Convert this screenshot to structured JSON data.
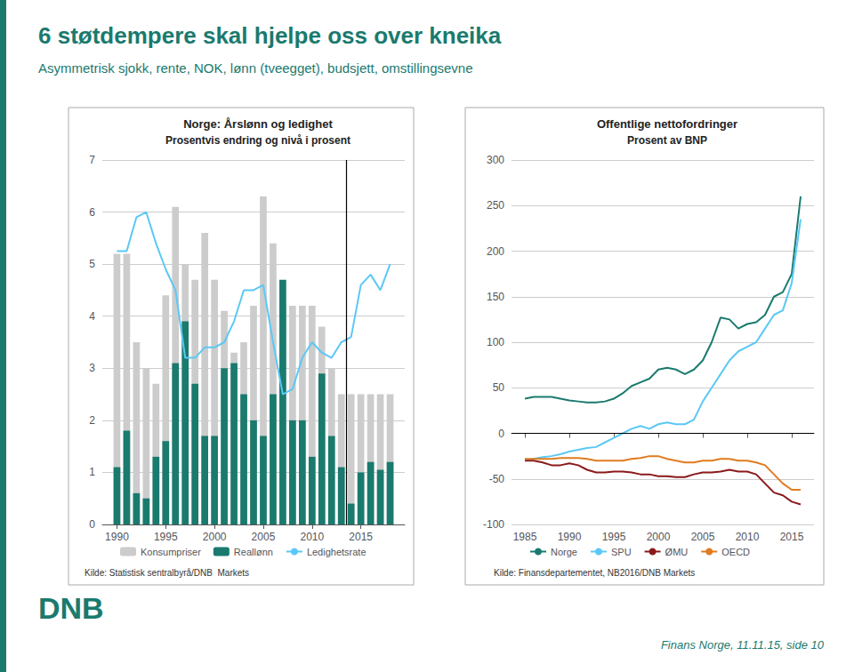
{
  "title": "6 støtdempere skal hjelpe oss over kneika",
  "subtitle": "Asymmetrisk sjokk, rente, NOK, lønn (tveegget), budsjett, omstillingsevne",
  "color": "#1a7a6e",
  "annotations": [
    "Finans Norge, 11.11.15, side 10",
    "DNB"
  ],
  "chart_data": [
    {
      "type": "bar",
      "title": "Norge: Årslønn og ledighet",
      "subtitle": "Prosentvis endring og nivå i prosent",
      "x": [
        1990,
        1991,
        1992,
        1993,
        1994,
        1995,
        1996,
        1997,
        1998,
        1999,
        2000,
        2001,
        2002,
        2003,
        2004,
        2005,
        2006,
        2007,
        2008,
        2009,
        2010,
        2011,
        2012,
        2013,
        2014,
        2015,
        2016,
        2017,
        2018
      ],
      "series": [
        {
          "name": "Konsumpriser",
          "type": "bar",
          "color": "#cccccc",
          "values": [
            5.2,
            5.2,
            3.5,
            3.0,
            2.7,
            4.4,
            6.1,
            5.0,
            4.7,
            5.6,
            4.7,
            4.1,
            3.3,
            3.5,
            4.2,
            6.3,
            5.4,
            4.2,
            4.2,
            4.2,
            4.2,
            3.8,
            3.0,
            2.5,
            2.5,
            2.5,
            2.5,
            2.5,
            2.5
          ]
        },
        {
          "name": "Reallønn",
          "type": "bar",
          "color": "#1a7a6e",
          "values": [
            1.1,
            1.8,
            0.6,
            0.5,
            1.3,
            1.6,
            3.1,
            3.9,
            2.7,
            1.7,
            1.7,
            3.0,
            3.1,
            2.5,
            2.0,
            1.7,
            2.5,
            4.7,
            2.0,
            2.0,
            1.3,
            2.9,
            1.7,
            1.1,
            0.4,
            1.0,
            1.2,
            1.05,
            1.2
          ]
        },
        {
          "name": "Ledighetsrate",
          "type": "line",
          "color": "#5bc8f5",
          "values": [
            5.25,
            5.25,
            5.9,
            6.0,
            5.4,
            4.9,
            4.5,
            3.2,
            3.2,
            3.4,
            3.4,
            3.5,
            3.9,
            4.5,
            4.5,
            4.6,
            3.5,
            2.5,
            2.6,
            3.2,
            3.5,
            3.3,
            3.2,
            3.5,
            3.6,
            4.6,
            4.8,
            4.5,
            5.0
          ]
        }
      ],
      "xlim": [
        1988.5,
        2019.5
      ],
      "xticks": [
        1990,
        1995,
        2000,
        2005,
        2010,
        2015
      ],
      "ylim": [
        0,
        7
      ],
      "yticks": [
        0,
        1,
        2,
        3,
        4,
        5,
        6,
        7
      ],
      "grid": true,
      "legend": "bottom",
      "vlines": [
        2013.5
      ],
      "annotations": [
        "Kilde: Statistisk sentralbyrå/DNB  Markets"
      ]
    },
    {
      "type": "line",
      "title": "Offentlige nettofordringer",
      "subtitle": "Prosent av BNP",
      "x": [
        1985,
        1986,
        1987,
        1988,
        1989,
        1990,
        1991,
        1992,
        1993,
        1994,
        1995,
        1996,
        1997,
        1998,
        1999,
        2000,
        2001,
        2002,
        2003,
        2004,
        2005,
        2006,
        2007,
        2008,
        2009,
        2010,
        2011,
        2012,
        2013,
        2014,
        2015,
        2016
      ],
      "series": [
        {
          "name": "Norge",
          "color": "#1a7a6e",
          "values": [
            38,
            40,
            40,
            40,
            38,
            36,
            35,
            34,
            34,
            35,
            38,
            44,
            52,
            56,
            60,
            70,
            72,
            70,
            65,
            70,
            80,
            100,
            127,
            125,
            115,
            120,
            122,
            130,
            150,
            155,
            175,
            260
          ]
        },
        {
          "name": "SPU",
          "color": "#5bc8f5",
          "values": [
            -30,
            -28,
            -26,
            -25,
            -23,
            -20,
            -18,
            -16,
            -15,
            -10,
            -5,
            0,
            5,
            8,
            5,
            10,
            12,
            10,
            10,
            15,
            35,
            50,
            65,
            80,
            90,
            95,
            100,
            115,
            130,
            135,
            165,
            235
          ]
        },
        {
          "name": "ØMU",
          "color": "#8b1a1a",
          "values": [
            -30,
            -30,
            -32,
            -35,
            -35,
            -33,
            -35,
            -40,
            -43,
            -43,
            -42,
            -42,
            -43,
            -45,
            -45,
            -47,
            -47,
            -48,
            -48,
            -45,
            -43,
            -43,
            -42,
            -40,
            -42,
            -42,
            -45,
            -55,
            -65,
            -68,
            -75,
            -78
          ]
        },
        {
          "name": "OECD",
          "color": "#e07b20",
          "values": [
            -28,
            -28,
            -28,
            -28,
            -27,
            -27,
            -27,
            -28,
            -30,
            -30,
            -30,
            -30,
            -28,
            -27,
            -25,
            -25,
            -28,
            -30,
            -32,
            -32,
            -30,
            -30,
            -28,
            -28,
            -30,
            -30,
            -32,
            -35,
            -45,
            -55,
            -62,
            -62
          ]
        }
      ],
      "xlim": [
        1983.5,
        2017.5
      ],
      "xticks": [
        1985,
        1990,
        1995,
        2000,
        2005,
        2010,
        2015
      ],
      "ylim": [
        -100,
        300
      ],
      "yticks": [
        -100,
        -50,
        0,
        50,
        100,
        150,
        200,
        250,
        300
      ],
      "grid": true,
      "legend": "bottom",
      "hlines": [
        0
      ],
      "annotations": [
        "Kilde: Finansdepartementet, NB2016/DNB Markets"
      ]
    }
  ]
}
